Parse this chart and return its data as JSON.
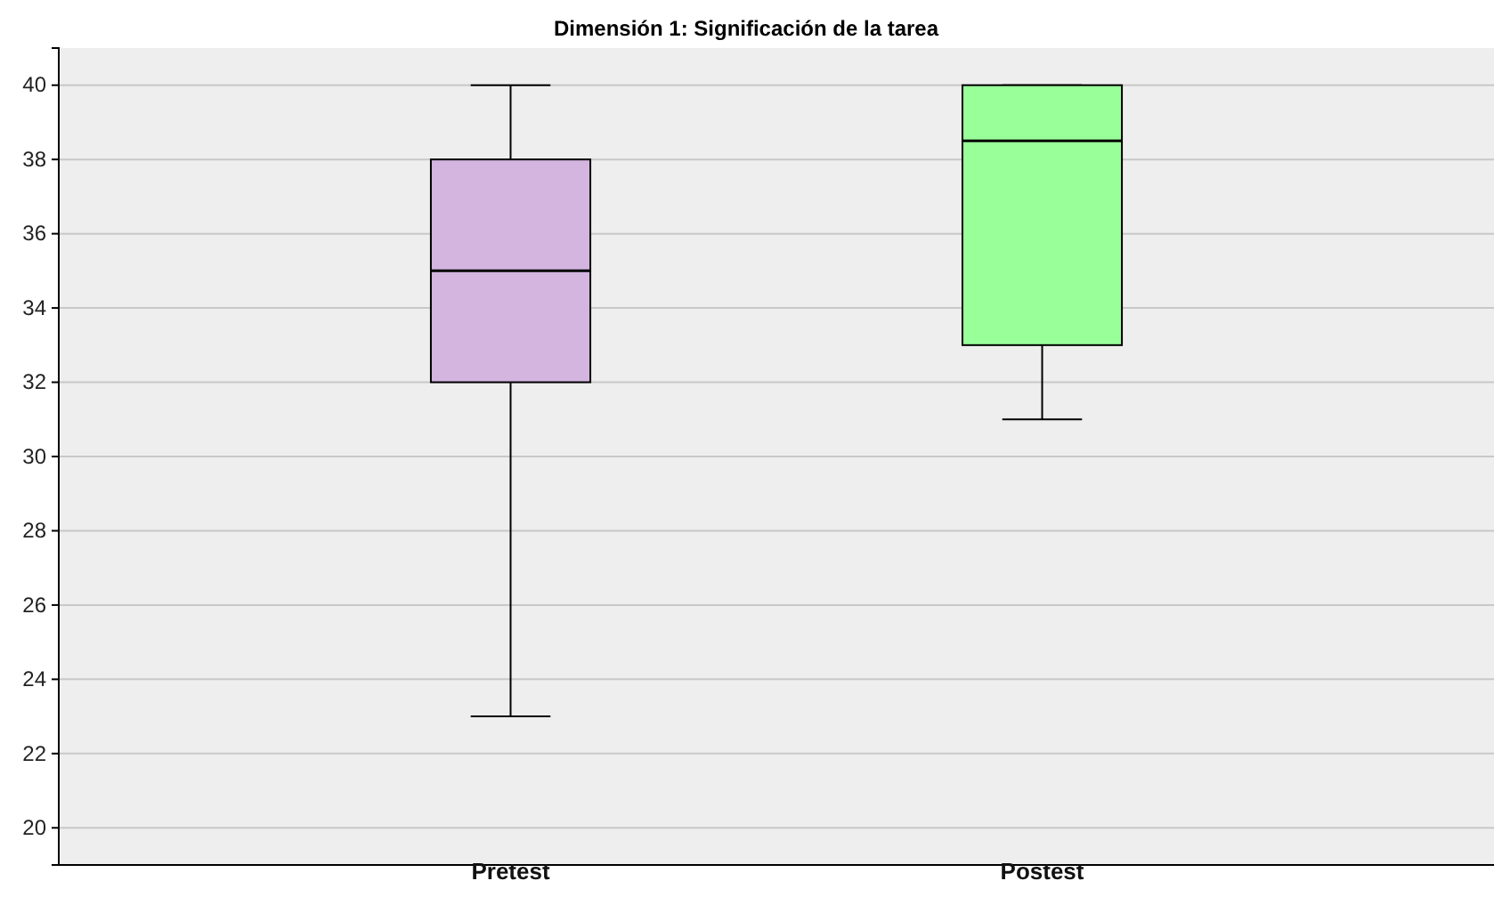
{
  "chart_data": {
    "type": "box",
    "title": "Dimensión 1: Significación de la tarea",
    "categories": [
      "Pretest",
      "Postest"
    ],
    "boxes": [
      {
        "low": 23,
        "q1": 32,
        "median": 35,
        "q3": 38,
        "high": 40
      },
      {
        "low": 31,
        "q1": 33,
        "median": 38.5,
        "q3": 40,
        "high": 40
      }
    ],
    "colors": [
      "#d3b5e0",
      "#99ff99"
    ],
    "ylim": [
      19,
      41
    ],
    "yticks": [
      20,
      22,
      24,
      26,
      28,
      30,
      32,
      34,
      36,
      38,
      40
    ],
    "grid": "y"
  }
}
